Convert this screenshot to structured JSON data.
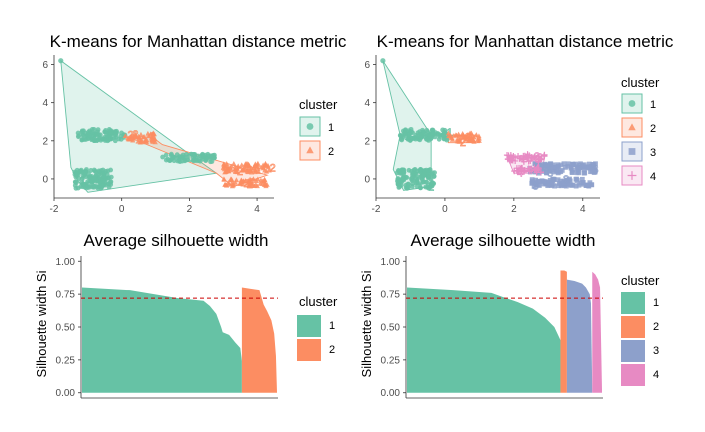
{
  "colors": {
    "c1": "#66C2A5",
    "c2": "#FC8D62",
    "c3": "#8DA0CB",
    "c4": "#E78AC3",
    "ref_line": "#CC0000",
    "axis": "#333333",
    "tick_label": "#4D4D4D"
  },
  "chart_data": [
    {
      "type": "scatter",
      "title": "K-means for Manhattan distance metric",
      "xlabel": "",
      "ylabel": "",
      "xlim": [
        -2,
        4.5
      ],
      "ylim": [
        -1,
        6.5
      ],
      "x_ticks": [
        -2,
        0,
        2,
        4
      ],
      "y_ticks": [
        0,
        2,
        4,
        6
      ],
      "x_tick_labels": [
        "-2",
        "0",
        "2",
        "4"
      ],
      "y_tick_labels": [
        "0",
        "2",
        "4",
        "6"
      ],
      "legend": {
        "title": "cluster",
        "placement": "right",
        "entries": [
          {
            "label": "1",
            "shape": "circle",
            "color": "c1"
          },
          {
            "label": "2",
            "shape": "triangle",
            "color": "c2"
          }
        ]
      },
      "series": [
        {
          "name": "1",
          "color": "c1",
          "shape": "circle",
          "hull": [
            [
              -1.8,
              6.2
            ],
            [
              -1.5,
              0.6
            ],
            [
              -1.3,
              -0.1
            ],
            [
              -1.0,
              -0.7
            ],
            [
              2.8,
              0.3
            ],
            [
              2.0,
              1.3
            ]
          ],
          "clouds": [
            {
              "x": [
                -1.3,
                0.1
              ],
              "y": [
                2.0,
                2.6
              ],
              "label": "1"
            },
            {
              "x": [
                -1.4,
                -0.3
              ],
              "y": [
                -0.5,
                0.5
              ],
              "label": "1"
            },
            {
              "x": [
                1.2,
                2.8
              ],
              "y": [
                0.9,
                1.3
              ],
              "label": "1"
            }
          ],
          "points": [
            [
              -1.8,
              6.2
            ]
          ]
        },
        {
          "name": "2",
          "color": "c2",
          "shape": "triangle",
          "hull": [
            [
              0.2,
              2.2
            ],
            [
              0.9,
              2.2
            ],
            [
              1.2,
              1.8
            ],
            [
              4.3,
              0.2
            ],
            [
              3.3,
              -0.4
            ],
            [
              2.8,
              0.3
            ]
          ],
          "clouds": [
            {
              "x": [
                0.1,
                1.0
              ],
              "y": [
                1.9,
                2.4
              ],
              "label": "2"
            },
            {
              "x": [
                3.0,
                4.4
              ],
              "y": [
                0.3,
                0.8
              ],
              "label": "2"
            },
            {
              "x": [
                3.0,
                4.3
              ],
              "y": [
                -0.4,
                0.0
              ],
              "label": "2"
            }
          ],
          "points": []
        }
      ]
    },
    {
      "type": "scatter",
      "title": "K-means for Manhattan distance metric",
      "xlabel": "",
      "ylabel": "",
      "xlim": [
        -2,
        4.5
      ],
      "ylim": [
        -1,
        6.5
      ],
      "x_ticks": [
        -2,
        0,
        2,
        4
      ],
      "y_ticks": [
        0,
        2,
        4,
        6
      ],
      "x_tick_labels": [
        "-2",
        "0",
        "2",
        "4"
      ],
      "y_tick_labels": [
        "0",
        "2",
        "4",
        "6"
      ],
      "legend": {
        "title": "cluster",
        "placement": "right",
        "entries": [
          {
            "label": "1",
            "shape": "circle",
            "color": "c1"
          },
          {
            "label": "2",
            "shape": "triangle",
            "color": "c2"
          },
          {
            "label": "3",
            "shape": "square",
            "color": "c3"
          },
          {
            "label": "4",
            "shape": "plus",
            "color": "c4"
          }
        ]
      },
      "series": [
        {
          "name": "1",
          "color": "c1",
          "shape": "circle",
          "hull": [
            [
              -1.8,
              6.2
            ],
            [
              -1.3,
              2.3
            ],
            [
              -1.5,
              0.5
            ],
            [
              -1.2,
              -0.6
            ],
            [
              -0.4,
              -0.4
            ],
            [
              -0.4,
              2.3
            ]
          ],
          "clouds": [
            {
              "x": [
                -1.3,
                0.1
              ],
              "y": [
                2.0,
                2.6
              ],
              "label": "1"
            },
            {
              "x": [
                -1.4,
                -0.3
              ],
              "y": [
                -0.5,
                0.5
              ],
              "label": "1"
            }
          ],
          "points": [
            [
              -1.8,
              6.2
            ]
          ]
        },
        {
          "name": "2",
          "color": "c2",
          "shape": "triangle",
          "hull": [
            [
              0.1,
              2.3
            ],
            [
              0.9,
              2.3
            ],
            [
              1.0,
              1.9
            ],
            [
              0.1,
              1.9
            ]
          ],
          "clouds": [
            {
              "x": [
                0.1,
                1.0
              ],
              "y": [
                1.9,
                2.4
              ],
              "label": "2"
            }
          ],
          "points": []
        },
        {
          "name": "3",
          "color": "c3",
          "shape": "square",
          "hull": [],
          "clouds": [
            {
              "x": [
                2.4,
                4.4
              ],
              "y": [
                0.3,
                0.8
              ],
              "label": "3"
            },
            {
              "x": [
                2.5,
                4.3
              ],
              "y": [
                -0.4,
                0.0
              ],
              "label": "3"
            }
          ],
          "points": []
        },
        {
          "name": "4",
          "color": "c4",
          "shape": "plus",
          "hull": [
            [
              1.8,
              1.2
            ],
            [
              2.9,
              1.2
            ],
            [
              2.8,
              0.3
            ],
            [
              2.0,
              0.3
            ]
          ],
          "clouds": [
            {
              "x": [
                1.8,
                2.9
              ],
              "y": [
                0.9,
                1.3
              ],
              "label": "3"
            },
            {
              "x": [
                2.0,
                2.8
              ],
              "y": [
                0.3,
                0.6
              ],
              "label": "4"
            }
          ],
          "points": []
        }
      ]
    },
    {
      "type": "bar",
      "title": "Average silhouette width",
      "xlabel": "",
      "ylabel": "",
      "ylim": [
        -0.04,
        1.04
      ],
      "y_ticks": [
        0.0,
        0.25,
        0.5,
        0.75,
        1.0
      ],
      "y_tick_labels": [
        "0.00",
        "0.25",
        "0.50",
        "0.75",
        "1.00"
      ],
      "average_line": 0.72,
      "legend": {
        "title": "cluster",
        "placement": "right",
        "entries": [
          {
            "label": "1",
            "color": "c1"
          },
          {
            "label": "2",
            "color": "c2"
          }
        ]
      },
      "series": [
        {
          "name": "1",
          "color": "c1",
          "share": 0.82,
          "profile": [
            [
              0.0,
              0.8
            ],
            [
              0.3,
              0.78
            ],
            [
              0.6,
              0.72
            ],
            [
              0.76,
              0.7
            ],
            [
              0.8,
              0.66
            ],
            [
              0.84,
              0.6
            ],
            [
              0.87,
              0.5
            ],
            [
              0.88,
              0.46
            ],
            [
              0.92,
              0.44
            ],
            [
              0.96,
              0.38
            ],
            [
              0.99,
              0.34
            ],
            [
              1.0,
              0.24
            ]
          ]
        },
        {
          "name": "2",
          "color": "c2",
          "share": 0.18,
          "profile": [
            [
              0.0,
              0.8
            ],
            [
              0.25,
              0.79
            ],
            [
              0.5,
              0.78
            ],
            [
              0.62,
              0.67
            ],
            [
              0.72,
              0.62
            ],
            [
              0.84,
              0.55
            ],
            [
              0.92,
              0.45
            ],
            [
              0.97,
              0.28
            ],
            [
              1.0,
              0.0
            ]
          ]
        }
      ]
    },
    {
      "type": "bar",
      "title": "Average silhouette width",
      "xlabel": "",
      "ylabel": "Silhouette width Si",
      "ylim": [
        -0.04,
        1.04
      ],
      "y_ticks": [
        0.0,
        0.25,
        0.5,
        0.75,
        1.0
      ],
      "y_tick_labels": [
        "0.00",
        "0.25",
        "0.50",
        "0.75",
        "1.00"
      ],
      "average_line": 0.72,
      "legend": {
        "title": "cluster",
        "placement": "right",
        "entries": [
          {
            "label": "1",
            "color": "c1"
          },
          {
            "label": "2",
            "color": "c2"
          },
          {
            "label": "3",
            "color": "c3"
          },
          {
            "label": "4",
            "color": "c4"
          }
        ]
      },
      "series": [
        {
          "name": "1",
          "color": "c1",
          "share": 0.787,
          "profile": [
            [
              0.0,
              0.8
            ],
            [
              0.3,
              0.78
            ],
            [
              0.55,
              0.76
            ],
            [
              0.62,
              0.73
            ],
            [
              0.72,
              0.69
            ],
            [
              0.82,
              0.64
            ],
            [
              0.9,
              0.57
            ],
            [
              0.96,
              0.5
            ],
            [
              1.0,
              0.4
            ]
          ]
        },
        {
          "name": "2",
          "color": "c2",
          "share": 0.033,
          "profile": [
            [
              0.0,
              0.93
            ],
            [
              0.6,
              0.93
            ],
            [
              1.0,
              0.92
            ]
          ]
        },
        {
          "name": "3",
          "color": "c3",
          "share": 0.13,
          "profile": [
            [
              0.0,
              0.86
            ],
            [
              0.3,
              0.85
            ],
            [
              0.6,
              0.83
            ],
            [
              0.75,
              0.8
            ],
            [
              0.9,
              0.75
            ],
            [
              0.95,
              0.68
            ],
            [
              1.0,
              0.02
            ]
          ]
        },
        {
          "name": "4",
          "color": "c4",
          "share": 0.05,
          "profile": [
            [
              0.0,
              0.92
            ],
            [
              0.3,
              0.9
            ],
            [
              0.6,
              0.86
            ],
            [
              0.8,
              0.8
            ],
            [
              1.0,
              0.02
            ]
          ]
        }
      ]
    }
  ],
  "y_axis_label_left": "Silhouette width Si"
}
